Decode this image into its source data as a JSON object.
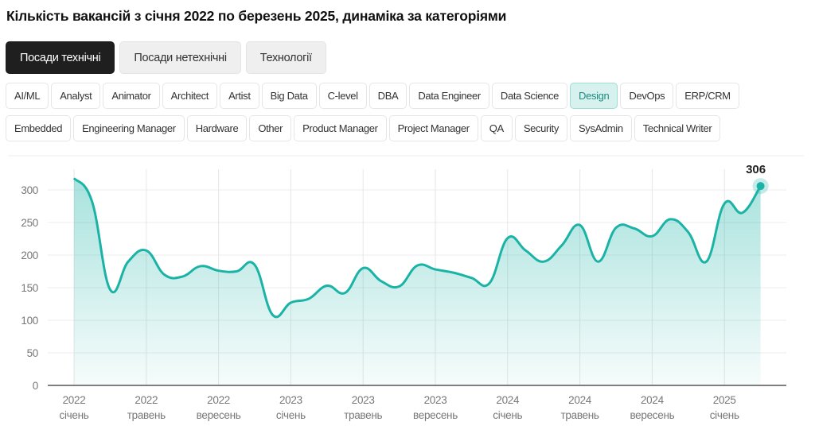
{
  "title": "Кількість вакансій з січня 2022 по березень 2025, динаміка за категоріями",
  "tabs": [
    {
      "label": "Посади технічні",
      "active": true
    },
    {
      "label": "Посади нетехнічні",
      "active": false
    },
    {
      "label": "Технології",
      "active": false
    }
  ],
  "categories": [
    "AI/ML",
    "Analyst",
    "Animator",
    "Architect",
    "Artist",
    "Big Data",
    "C-level",
    "DBA",
    "Data Engineer",
    "Data Science",
    "Design",
    "DevOps",
    "ERP/CRM",
    "Embedded",
    "Engineering Manager",
    "Hardware",
    "Other",
    "Product Manager",
    "Project Manager",
    "QA",
    "Security",
    "SysAdmin",
    "Technical Writer"
  ],
  "selected_category": "Design",
  "colors": {
    "accent": "#1ab3a6",
    "chip_active_bg": "#d6f1ee",
    "tab_active_bg": "#1f1f1f"
  },
  "chart_data": {
    "type": "area",
    "x_start": "2022-01",
    "x_end": "2025-03",
    "x_step": "month",
    "values": [
      318,
      282,
      147,
      190,
      207,
      170,
      167,
      183,
      176,
      175,
      185,
      108,
      127,
      133,
      153,
      142,
      180,
      160,
      152,
      184,
      178,
      173,
      165,
      157,
      226,
      207,
      190,
      215,
      246,
      190,
      242,
      241,
      229,
      255,
      235,
      190,
      279,
      265,
      306
    ],
    "x_ticks": [
      {
        "year": "2022",
        "month": "січень",
        "index": 0
      },
      {
        "year": "2022",
        "month": "травень",
        "index": 4
      },
      {
        "year": "2022",
        "month": "вересень",
        "index": 8
      },
      {
        "year": "2023",
        "month": "січень",
        "index": 12
      },
      {
        "year": "2023",
        "month": "травень",
        "index": 16
      },
      {
        "year": "2023",
        "month": "вересень",
        "index": 20
      },
      {
        "year": "2024",
        "month": "січень",
        "index": 24
      },
      {
        "year": "2024",
        "month": "травень",
        "index": 28
      },
      {
        "year": "2024",
        "month": "вересень",
        "index": 32
      },
      {
        "year": "2025",
        "month": "січень",
        "index": 36
      }
    ],
    "y_ticks": [
      "0",
      "50",
      "100",
      "150",
      "200",
      "250",
      "300"
    ],
    "ylim": [
      0,
      300
    ],
    "last_value_label": "306",
    "grid": true
  }
}
